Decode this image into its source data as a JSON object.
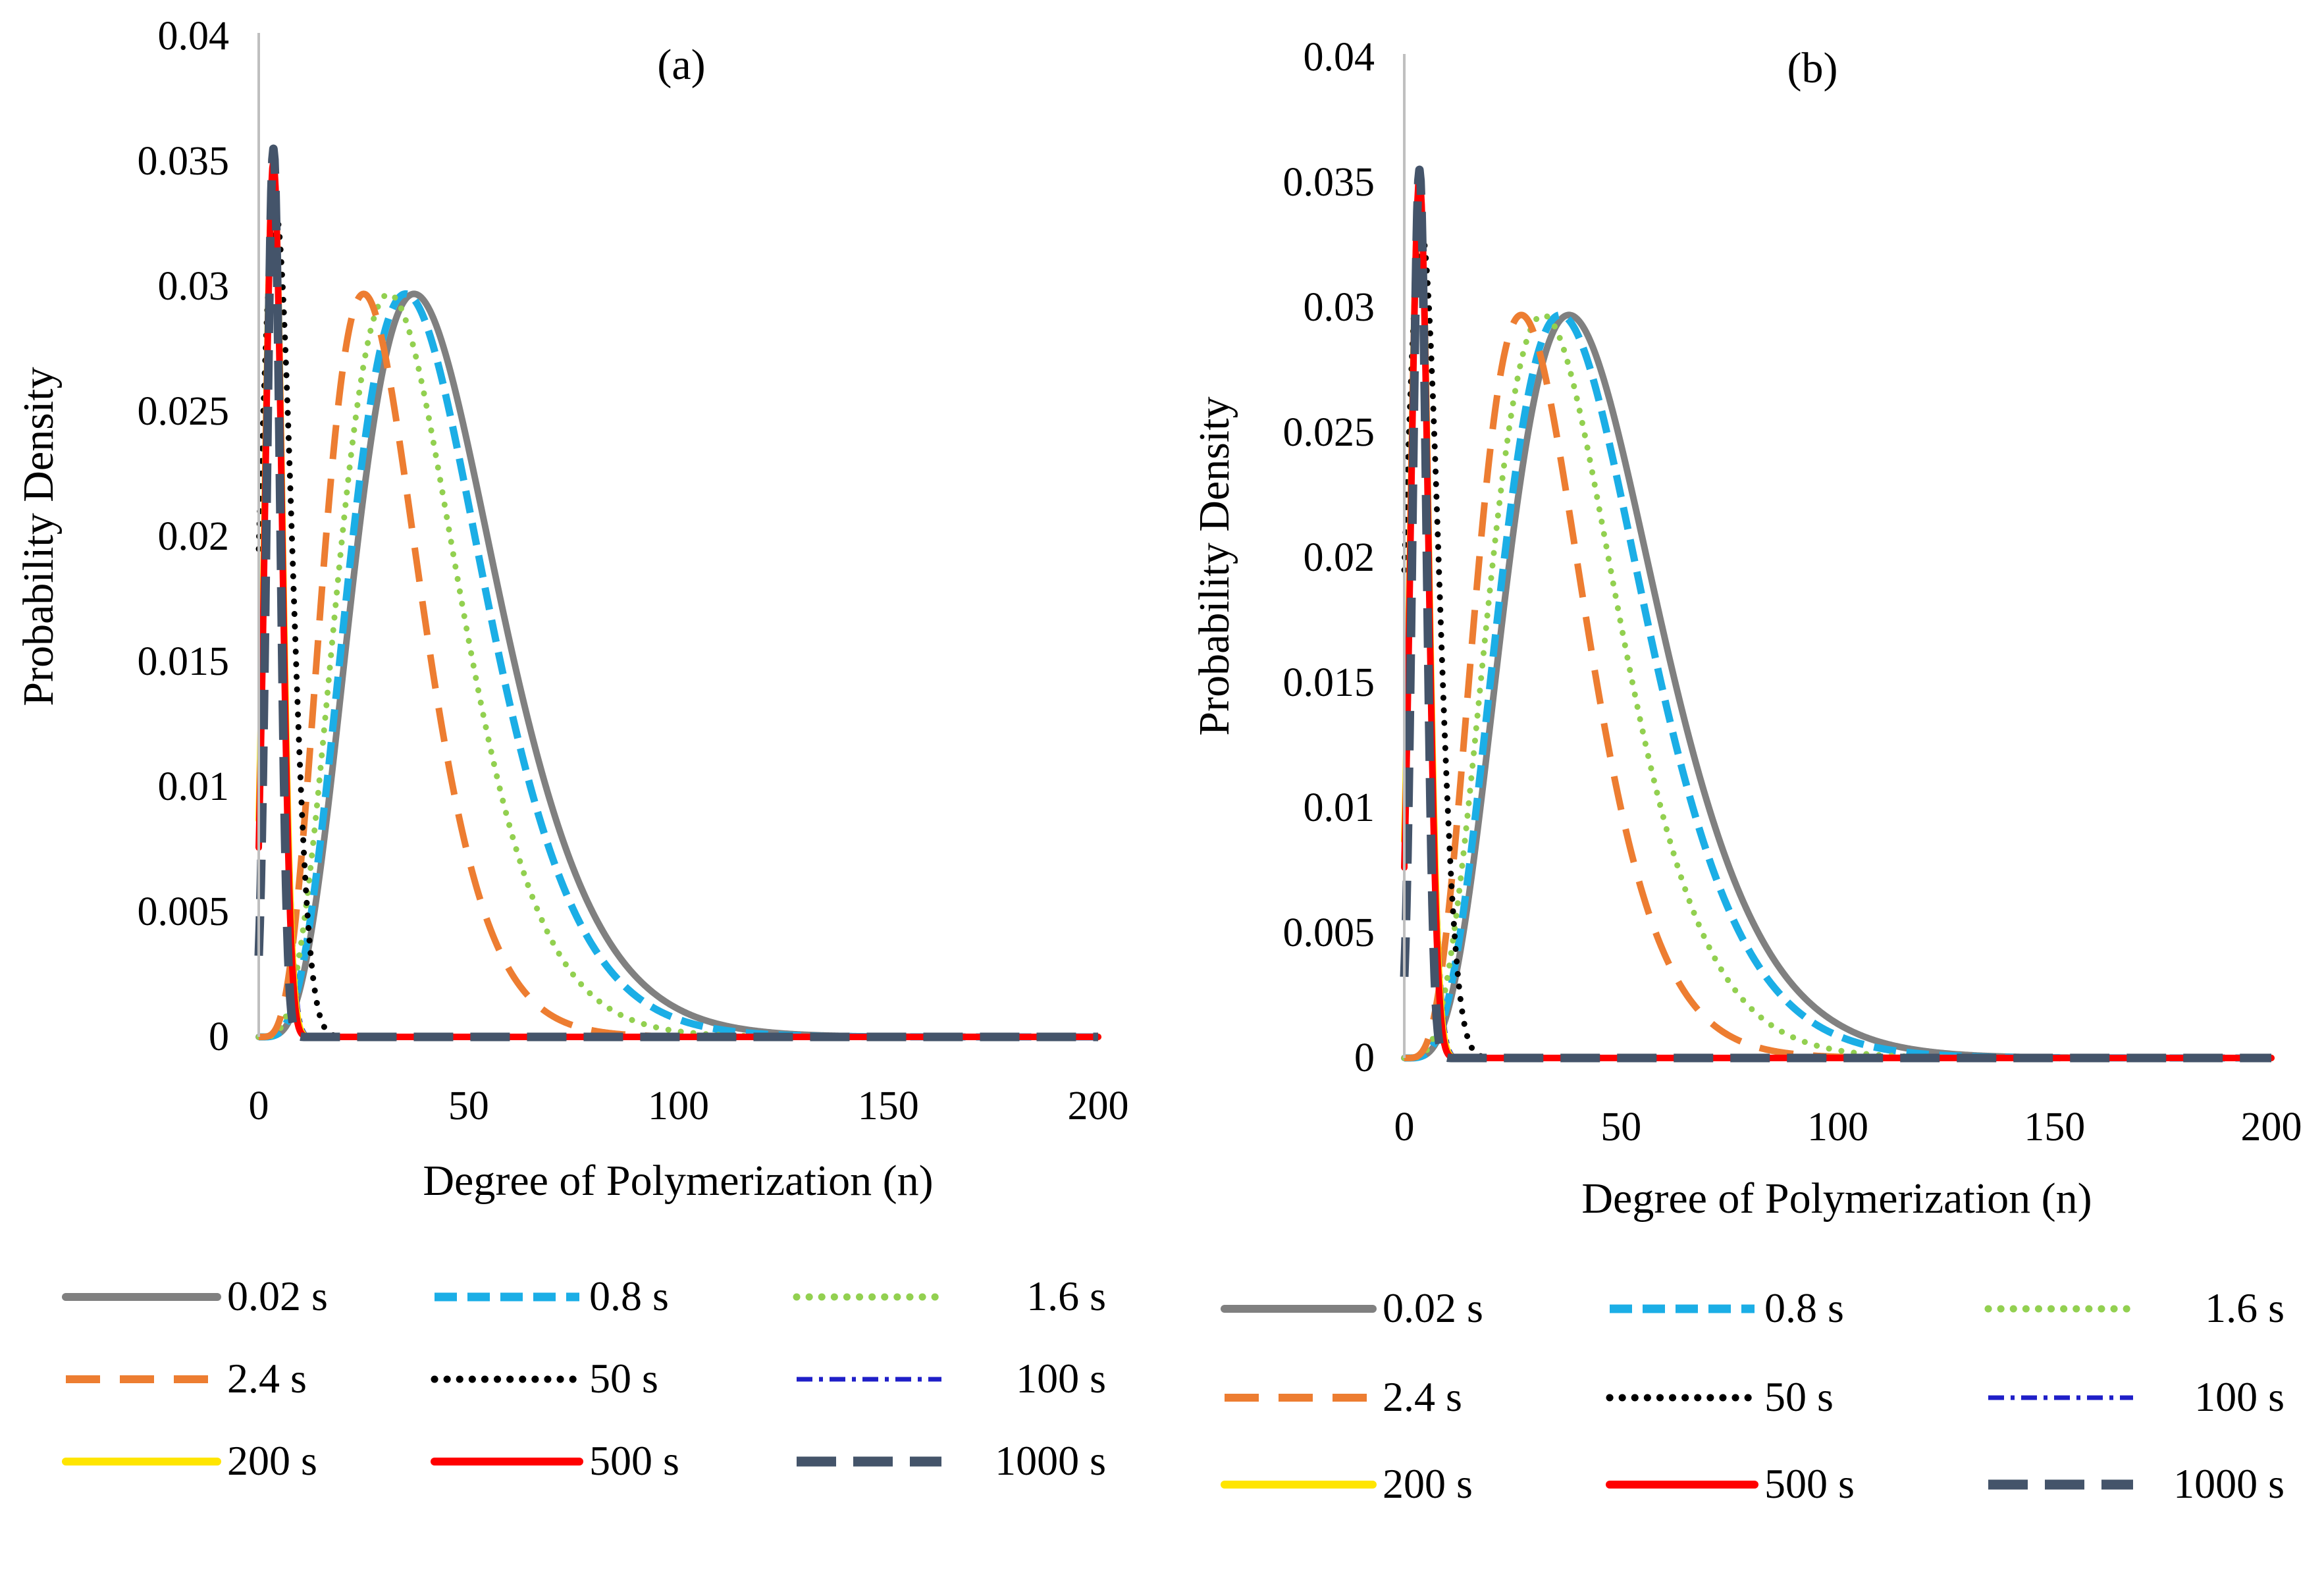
{
  "chart_data": [
    {
      "type": "line",
      "title": "(a)",
      "xlabel": "Degree of Polymerization  (n)",
      "ylabel": "Probability  Density",
      "xlim": [
        0,
        200
      ],
      "ylim": [
        0,
        0.04
      ],
      "xticks": [
        0,
        50,
        100,
        150,
        200
      ],
      "xtick_labels": [
        "0",
        "50",
        "100",
        "150",
        "200"
      ],
      "yticks": [
        0,
        0.005,
        0.01,
        0.015,
        0.02,
        0.025,
        0.03,
        0.035,
        0.04
      ],
      "ytick_labels": [
        "0",
        "0.005",
        "0.01",
        "0.015",
        "0.02",
        "0.025",
        "0.03",
        "0.035",
        "0.04"
      ],
      "grid": false,
      "legend_position": "bottom",
      "series": [
        {
          "name": "0.02 s",
          "color": "#808080",
          "style": "solid",
          "shape": "gamma",
          "k": 4.64,
          "peak_x": 37,
          "peak_y": 0.0297
        },
        {
          "name": "0.8 s",
          "color": "#1BAEE6",
          "style": "dash",
          "shape": "gamma",
          "k": 4.64,
          "peak_x": 35,
          "peak_y": 0.0297
        },
        {
          "name": "1.6 s",
          "color": "#92D050",
          "style": "dot",
          "shape": "gamma",
          "k": 4.64,
          "peak_x": 31,
          "peak_y": 0.0297
        },
        {
          "name": "2.4 s",
          "color": "#ED7D31",
          "style": "longdash",
          "shape": "gamma",
          "k": 4.64,
          "peak_x": 25,
          "peak_y": 0.0297
        },
        {
          "name": "50  s",
          "color": "#000000",
          "style": "dot",
          "shape": "gauss",
          "mu": 4.0,
          "sigma": 3.9,
          "peak_y": 0.033
        },
        {
          "name": "100 s",
          "color": "#1F1FC8",
          "style": "dashdot",
          "shape": "gauss",
          "mu": 3.5,
          "sigma": 2.3,
          "peak_y": 0.0345
        },
        {
          "name": "200 s",
          "color": "#FFE500",
          "style": "solid",
          "shape": "gauss",
          "mu": 3.5,
          "sigma": 2.1,
          "peak_y": 0.0348
        },
        {
          "name": "500 s",
          "color": "#FF0000",
          "style": "solid",
          "shape": "gauss",
          "mu": 3.5,
          "sigma": 2.0,
          "peak_y": 0.035
        },
        {
          "name": "1000 s",
          "color": "#44546A",
          "style": "heavydash",
          "shape": "gauss",
          "mu": 3.5,
          "sigma": 1.6,
          "peak_y": 0.0355
        }
      ]
    },
    {
      "type": "line",
      "title": "(b)",
      "xlabel": "Degree of Polymerization  (n)",
      "ylabel": "Probability  Density",
      "xlim": [
        0,
        200
      ],
      "ylim": [
        0,
        0.04
      ],
      "xticks": [
        0,
        50,
        100,
        150,
        200
      ],
      "xtick_labels": [
        "0",
        "50",
        "100",
        "150",
        "200"
      ],
      "yticks": [
        0,
        0.005,
        0.01,
        0.015,
        0.02,
        0.025,
        0.03,
        0.035,
        0.04
      ],
      "ytick_labels": [
        "0",
        "0.005",
        "0.01",
        "0.015",
        "0.02",
        "0.025",
        "0.03",
        "0.035",
        "0.04"
      ],
      "grid": false,
      "legend_position": "bottom",
      "series": [
        {
          "name": "0.02 s",
          "color": "#808080",
          "style": "solid",
          "shape": "gamma",
          "k": 4.64,
          "peak_x": 38,
          "peak_y": 0.0297
        },
        {
          "name": "0.8 s",
          "color": "#1BAEE6",
          "style": "dash",
          "shape": "gamma",
          "k": 4.64,
          "peak_x": 36,
          "peak_y": 0.0297
        },
        {
          "name": "1.6 s",
          "color": "#92D050",
          "style": "dot",
          "shape": "gamma",
          "k": 4.64,
          "peak_x": 32,
          "peak_y": 0.0297
        },
        {
          "name": "2.4 s",
          "color": "#ED7D31",
          "style": "longdash",
          "shape": "gamma",
          "k": 4.64,
          "peak_x": 27,
          "peak_y": 0.0297
        },
        {
          "name": "50  s",
          "color": "#000000",
          "style": "dot",
          "shape": "gauss",
          "mu": 4.0,
          "sigma": 3.9,
          "peak_y": 0.033
        },
        {
          "name": "100 s",
          "color": "#1F1FC8",
          "style": "dashdot",
          "shape": "gauss",
          "mu": 3.5,
          "sigma": 2.3,
          "peak_y": 0.0345
        },
        {
          "name": "200 s",
          "color": "#FFE500",
          "style": "solid",
          "shape": "gauss",
          "mu": 3.5,
          "sigma": 2.1,
          "peak_y": 0.0348
        },
        {
          "name": "500 s",
          "color": "#FF0000",
          "style": "solid",
          "shape": "gauss",
          "mu": 3.5,
          "sigma": 2.0,
          "peak_y": 0.0352
        },
        {
          "name": "1000 s",
          "color": "#44546A",
          "style": "heavydash",
          "shape": "gauss",
          "mu": 3.5,
          "sigma": 1.6,
          "peak_y": 0.0355
        }
      ]
    }
  ]
}
